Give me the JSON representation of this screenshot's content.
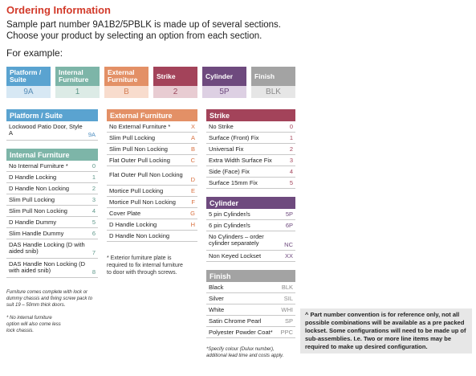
{
  "heading": "Ordering Information",
  "intro": {
    "line1": "Sample part number 9A1B2/5PBLK is made up of several sections.",
    "line2": "Choose your product by selecting an option from each section."
  },
  "example_label": "For example:",
  "samples": [
    {
      "label": "Platform / Suite",
      "value": "9A",
      "color": "#5aa3d0",
      "bg": "#d7e8f4",
      "fg": "#5a8fb8"
    },
    {
      "label": "Internal Furniture",
      "value": "1",
      "color": "#7db5a8",
      "bg": "#dcebe6",
      "fg": "#5d9789"
    },
    {
      "label": "External Furniture",
      "value": "B",
      "color": "#e39066",
      "bg": "#f8dccd",
      "fg": "#d47f55"
    },
    {
      "label": "Strike",
      "value": "2",
      "color": "#a3435a",
      "bg": "#e8ccd2",
      "fg": "#9b4a5e"
    },
    {
      "label": "Cylinder",
      "value": "5P",
      "color": "#6e4a7e",
      "bg": "#ddd0e3",
      "fg": "#6e4a7e"
    },
    {
      "label": "Finish",
      "value": "BLK",
      "color": "#a3a3a3",
      "bg": "#e6e6e6",
      "fg": "#8a8a8a"
    }
  ],
  "platform": {
    "title": "Platform / Suite",
    "color": "#5aa3d0",
    "code_color": "#4f8fc1",
    "rows": [
      {
        "label": "Lockwood Patio Door, Style A",
        "code": "9A"
      }
    ]
  },
  "internal": {
    "title": "Internal Furniture",
    "color": "#7db5a8",
    "code_color": "#5d9789",
    "rows": [
      {
        "label": "No Internal Furniture *",
        "code": "0"
      },
      {
        "label": "D Handle Locking",
        "code": "1"
      },
      {
        "label": "D Handle Non Locking",
        "code": "2"
      },
      {
        "label": "Slim Pull Locking",
        "code": "3"
      },
      {
        "label": "Slim Pull Non Locking",
        "code": "4"
      },
      {
        "label": "D Handle Dummy",
        "code": "5"
      },
      {
        "label": "Slim Handle Dummy",
        "code": "6"
      },
      {
        "label": "DAS Handle Locking (D with aided snib)",
        "code": "7"
      },
      {
        "label": "DAS Handle Non Locking (D with aided snib)",
        "code": "8"
      }
    ],
    "footnote1": "Furniture comes complete with lock or dummy chassis and fixing screw pack to suit 19 – 50mm thick doors.",
    "footnote2": "* No internal furniture option will also come less lock chassis."
  },
  "external": {
    "title": "External Furniture",
    "color": "#e39066",
    "code_color": "#d8703f",
    "rows": [
      {
        "label": "No External Furniture *",
        "code": "X"
      },
      {
        "label": "Slim Pull Locking",
        "code": "A"
      },
      {
        "label": "Slim Pull Non Locking",
        "code": "B"
      },
      {
        "label": "Flat Outer Pull Locking",
        "code": "C"
      },
      {
        "label": "Flat Outer Pull Non Locking",
        "code": "D"
      },
      {
        "label": "Mortice Pull Locking",
        "code": "E"
      },
      {
        "label": "Mortice Pull Non Locking",
        "code": "F"
      },
      {
        "label": "Cover Plate",
        "code": "G"
      },
      {
        "label": "D Handle Locking",
        "code": "H"
      },
      {
        "label": "D Handle Non Locking",
        "code": ""
      }
    ],
    "footnote": "* Exterior furniture plate is required to fix internal furniture to door with through screws."
  },
  "strike": {
    "title": "Strike",
    "color": "#a3435a",
    "code_color": "#a3435a",
    "rows": [
      {
        "label": "No Strike",
        "code": "0"
      },
      {
        "label": "Surface (Front) Fix",
        "code": "1"
      },
      {
        "label": "Universal Fix",
        "code": "2"
      },
      {
        "label": "Extra Width Surface Fix",
        "code": "3"
      },
      {
        "label": "Side (Face) Fix",
        "code": "4"
      },
      {
        "label": "Surface 15mm Fix",
        "code": "5"
      }
    ]
  },
  "cylinder": {
    "title": "Cylinder",
    "color": "#6e4a7e",
    "code_color": "#6e4a7e",
    "rows": [
      {
        "label": "5 pin Cylinder/s",
        "code": "5P"
      },
      {
        "label": "6 pin Cylinder/s",
        "code": "6P"
      },
      {
        "label": "No Cylinders – order cylinder separately",
        "code": "NC"
      },
      {
        "label": "Non Keyed Lockset",
        "code": "XX"
      }
    ]
  },
  "finish": {
    "title": "Finish",
    "color": "#a3a3a3",
    "code_color": "#8a8a8a",
    "rows": [
      {
        "label": "Black",
        "code": "BLK"
      },
      {
        "label": "Silver",
        "code": "SIL"
      },
      {
        "label": "White",
        "code": "WHI"
      },
      {
        "label": "Satin Chrome Pearl",
        "code": "SP"
      },
      {
        "label": "Polyester Powder Coat*",
        "code": "PPC"
      }
    ],
    "footnote": "*Specify colour (Dulux number), additional lead time and costs apply."
  },
  "note": "^ Part number convention is for reference only, not all possible combinations will be available as a pre packed lockset. Some configurations will need to be made up of sub-assemblies. I.e. Two or more line items may be required to make up desired configuration."
}
